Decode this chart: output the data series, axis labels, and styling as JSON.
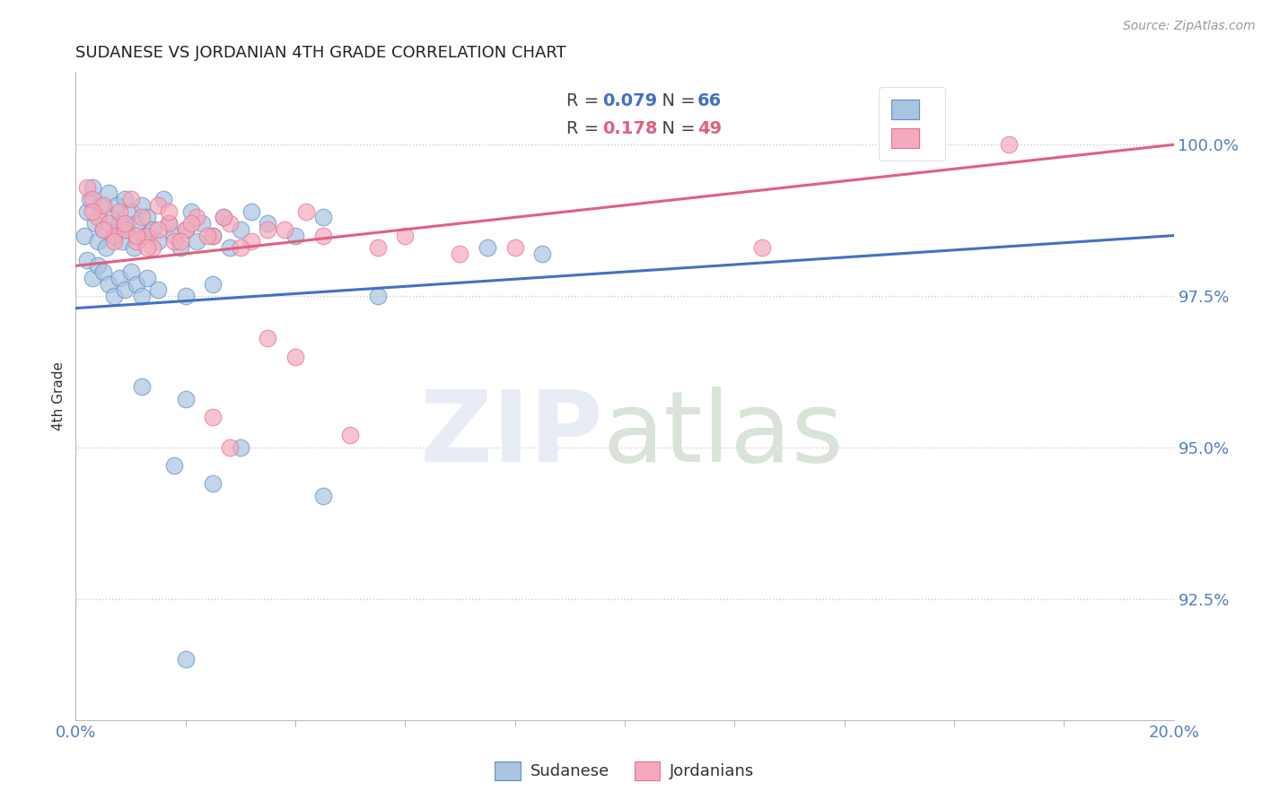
{
  "title": "SUDANESE VS JORDANIAN 4TH GRADE CORRELATION CHART",
  "source_text": "Source: ZipAtlas.com",
  "ylabel": "4th Grade",
  "ytick_labels": [
    "92.5%",
    "95.0%",
    "97.5%",
    "100.0%"
  ],
  "ytick_values": [
    92.5,
    95.0,
    97.5,
    100.0
  ],
  "xmin": 0.0,
  "xmax": 20.0,
  "ymin": 90.5,
  "ymax": 101.2,
  "blue_R": 0.079,
  "blue_N": 66,
  "pink_R": 0.178,
  "pink_N": 49,
  "blue_color": "#A8C4E0",
  "pink_color": "#F4AABC",
  "blue_edge_color": "#6090C8",
  "pink_edge_color": "#E87090",
  "blue_line_color": "#4470C4",
  "pink_line_color": "#E06080",
  "title_color": "#222222",
  "axis_tick_color": "#5080C0",
  "grid_color": "#CCCCCC",
  "blue_line_y0": 97.3,
  "blue_line_y1": 98.5,
  "pink_line_y0": 98.0,
  "pink_line_y1": 100.0,
  "blue_scatter_x": [
    0.15,
    0.2,
    0.25,
    0.3,
    0.35,
    0.4,
    0.45,
    0.5,
    0.55,
    0.6,
    0.65,
    0.7,
    0.75,
    0.8,
    0.85,
    0.9,
    0.95,
    1.0,
    1.05,
    1.1,
    1.2,
    1.25,
    1.3,
    1.4,
    1.5,
    1.6,
    1.7,
    1.8,
    1.9,
    2.0,
    2.1,
    2.2,
    2.3,
    2.5,
    2.7,
    2.8,
    3.0,
    3.2,
    3.5,
    4.0,
    4.5,
    5.5,
    7.5,
    0.2,
    0.3,
    0.4,
    0.5,
    0.6,
    0.7,
    0.8,
    0.9,
    1.0,
    1.1,
    1.2,
    1.3,
    1.5,
    2.0,
    2.5,
    1.2,
    2.0,
    1.8,
    2.5,
    3.0,
    4.5,
    2.0,
    8.5
  ],
  "blue_scatter_y": [
    98.5,
    98.9,
    99.1,
    99.3,
    98.7,
    98.4,
    99.0,
    98.6,
    98.3,
    99.2,
    98.8,
    98.5,
    99.0,
    98.7,
    98.4,
    99.1,
    98.6,
    98.9,
    98.3,
    98.7,
    99.0,
    98.5,
    98.8,
    98.6,
    98.4,
    99.1,
    98.7,
    98.5,
    98.3,
    98.6,
    98.9,
    98.4,
    98.7,
    98.5,
    98.8,
    98.3,
    98.6,
    98.9,
    98.7,
    98.5,
    98.8,
    97.5,
    98.3,
    98.1,
    97.8,
    98.0,
    97.9,
    97.7,
    97.5,
    97.8,
    97.6,
    97.9,
    97.7,
    97.5,
    97.8,
    97.6,
    97.5,
    97.7,
    96.0,
    95.8,
    94.7,
    94.4,
    95.0,
    94.2,
    91.5,
    98.2
  ],
  "pink_scatter_x": [
    0.2,
    0.3,
    0.4,
    0.5,
    0.6,
    0.7,
    0.8,
    0.9,
    1.0,
    1.1,
    1.2,
    1.3,
    1.4,
    1.5,
    1.7,
    1.8,
    2.0,
    2.2,
    2.5,
    2.8,
    3.2,
    3.8,
    4.5,
    5.5,
    0.3,
    0.5,
    0.7,
    0.9,
    1.1,
    1.3,
    1.5,
    1.7,
    1.9,
    2.1,
    2.4,
    2.7,
    3.0,
    3.5,
    4.2,
    6.0,
    7.0,
    2.5,
    3.5,
    4.0,
    2.8,
    5.0,
    12.5,
    17.0,
    8.0
  ],
  "pink_scatter_y": [
    99.3,
    99.1,
    98.8,
    99.0,
    98.7,
    98.5,
    98.9,
    98.6,
    99.1,
    98.4,
    98.8,
    98.5,
    98.3,
    99.0,
    98.7,
    98.4,
    98.6,
    98.8,
    98.5,
    98.7,
    98.4,
    98.6,
    98.5,
    98.3,
    98.9,
    98.6,
    98.4,
    98.7,
    98.5,
    98.3,
    98.6,
    98.9,
    98.4,
    98.7,
    98.5,
    98.8,
    98.3,
    98.6,
    98.9,
    98.5,
    98.2,
    95.5,
    96.8,
    96.5,
    95.0,
    95.2,
    98.3,
    100.0,
    98.3
  ]
}
